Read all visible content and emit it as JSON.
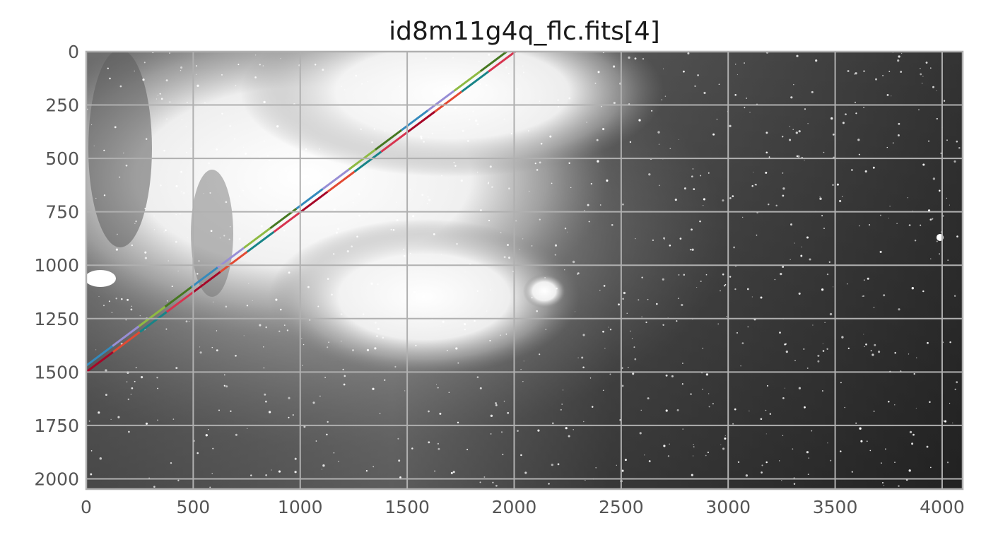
{
  "chart_data": {
    "type": "image",
    "title": "id8m11g4q_flc.fits[4]",
    "xlim": [
      0,
      4096
    ],
    "ylim": [
      2048,
      0
    ],
    "y_inverted": true,
    "grid": true,
    "x_ticks": [
      0,
      500,
      1000,
      1500,
      2000,
      2500,
      3000,
      3500,
      4000
    ],
    "x_tick_labels": [
      "0",
      "500",
      "1000",
      "1500",
      "2000",
      "2500",
      "3000",
      "3500",
      "4000"
    ],
    "y_ticks": [
      0,
      250,
      500,
      750,
      1000,
      1250,
      1500,
      1750,
      2000
    ],
    "y_tick_labels": [
      "0",
      "250",
      "500",
      "750",
      "1000",
      "1250",
      "1500",
      "1750",
      "2000"
    ],
    "colormap": "gray",
    "overlay_lines": [
      {
        "color": "#348abd",
        "alt_colors": [
          "#467821",
          "#8eba42",
          "#988ed5"
        ],
        "start": [
          0,
          1470
        ],
        "end": [
          1965,
          0
        ]
      },
      {
        "color": "#e24a33",
        "alt_colors": [
          "#a60628",
          "#d7344f",
          "#188487"
        ],
        "start": [
          0,
          1500
        ],
        "end": [
          2005,
          0
        ]
      }
    ]
  }
}
